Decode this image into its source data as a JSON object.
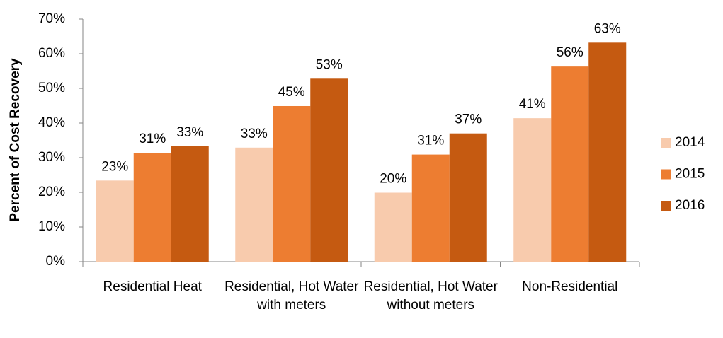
{
  "chart_data": {
    "type": "bar",
    "y_label": "Percent of Cost Recovery",
    "categories": [
      "Residential Heat",
      "Residential, Hot Water with meters",
      "Residential, Hot Water without meters",
      "Non-Residential"
    ],
    "series": [
      {
        "name": "2014",
        "color": "#f8cbad",
        "values": [
          23.4,
          32.9,
          19.9,
          41.4
        ],
        "value_labels": [
          "23%",
          "33%",
          "20%",
          "41%"
        ]
      },
      {
        "name": "2015",
        "color": "#ed7d31",
        "values": [
          31.4,
          44.9,
          30.9,
          56.3
        ],
        "value_labels": [
          "31%",
          "45%",
          "31%",
          "56%"
        ]
      },
      {
        "name": "2016",
        "color": "#c55a11",
        "values": [
          33.3,
          52.8,
          37.0,
          63.2
        ],
        "value_labels": [
          "33%",
          "53%",
          "37%",
          "63%"
        ]
      }
    ],
    "ylim": [
      0,
      70
    ],
    "yticks": [
      {
        "value": 0,
        "label": "0%"
      },
      {
        "value": 10,
        "label": "10%"
      },
      {
        "value": 20,
        "label": "20%"
      },
      {
        "value": 30,
        "label": "30%"
      },
      {
        "value": 40,
        "label": "40%"
      },
      {
        "value": 50,
        "label": "50%"
      },
      {
        "value": 60,
        "label": "60%"
      },
      {
        "value": 70,
        "label": "70%"
      }
    ],
    "legend": "right"
  }
}
